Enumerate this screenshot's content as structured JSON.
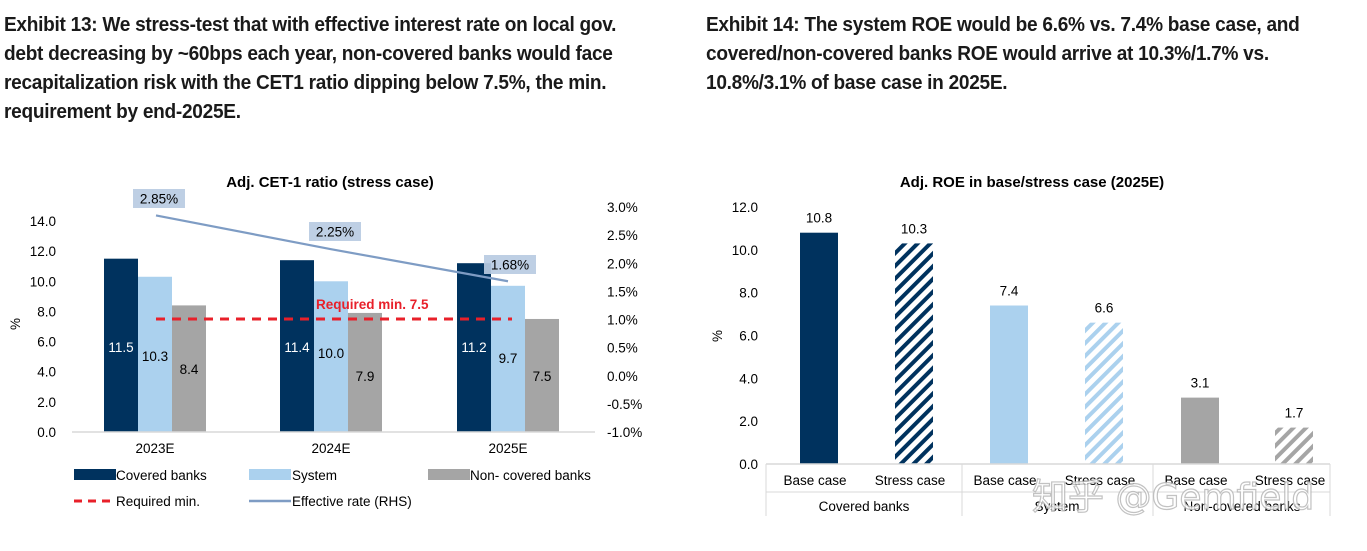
{
  "exhibits": {
    "ex13_title": "Exhibit 13: We stress-test that with effective interest rate on local gov. debt decreasing by ~60bps each year, non-covered banks would face recapitalization risk with the CET1 ratio dipping below 7.5%, the min. requirement by end-2025E.",
    "ex14_title": "Exhibit 14: The system ROE would be 6.6% vs. 7.4% base case, and covered/non-covered banks ROE would arrive at 10.3%/1.7% vs. 10.8%/3.1% of base case in 2025E."
  },
  "colors": {
    "covered": "#00325e",
    "system": "#abd1ee",
    "noncovered": "#a5a5a5",
    "required_min": "#e8202a",
    "effective_rate": "#7e9cc4",
    "rate_label_bg": "#b9cbe2",
    "axis": "#d9d9d9"
  },
  "watermark": "知乎 @Gemfield",
  "chart_data": [
    {
      "id": "cet1",
      "type": "bar",
      "title": "Adj. CET-1 ratio (stress case)",
      "ylabel": "%",
      "ylim": [
        0,
        14
      ],
      "yticks": [
        "0.0",
        "2.0",
        "4.0",
        "6.0",
        "8.0",
        "10.0",
        "12.0",
        "14.0"
      ],
      "y2lim": [
        -1.0,
        3.0
      ],
      "y2ticks": [
        "-1.0%",
        "-0.5%",
        "0.0%",
        "0.5%",
        "1.0%",
        "1.5%",
        "2.0%",
        "2.5%",
        "3.0%"
      ],
      "categories": [
        "2023E",
        "2024E",
        "2025E"
      ],
      "series": [
        {
          "name": "Covered banks",
          "type": "bar",
          "values": [
            11.5,
            11.4,
            11.2
          ],
          "labels": [
            "11.5",
            "11.4",
            "11.2"
          ]
        },
        {
          "name": "System",
          "type": "bar",
          "values": [
            10.3,
            10.0,
            9.7
          ],
          "labels": [
            "10.3",
            "10.0",
            "9.7"
          ]
        },
        {
          "name": "Non- covered banks",
          "type": "bar",
          "values": [
            8.4,
            7.9,
            7.5
          ],
          "labels": [
            "8.4",
            "7.9",
            "7.5"
          ]
        },
        {
          "name": "Required min.",
          "type": "line-dashed",
          "value": 7.5
        },
        {
          "name": "Effective rate (RHS)",
          "type": "line",
          "axis": "right",
          "values": [
            2.85,
            2.25,
            1.68
          ],
          "labels": [
            "2.85%",
            "2.25%",
            "1.68%"
          ]
        }
      ],
      "annotation": "Required min. 7.5",
      "legend": [
        "Covered banks",
        "System",
        "Non- covered banks",
        "Required min.",
        "Effective rate (RHS)"
      ],
      "legend_position": "bottom",
      "grid": false
    },
    {
      "id": "roe",
      "type": "bar",
      "title": "Adj. ROE in base/stress case (2025E)",
      "ylabel": "%",
      "ylim": [
        0,
        12
      ],
      "yticks": [
        "0.0",
        "2.0",
        "4.0",
        "6.0",
        "8.0",
        "10.0",
        "12.0"
      ],
      "groups": [
        "Covered banks",
        "System",
        "Non-covered banks"
      ],
      "categories": [
        "Base case",
        "Stress case",
        "Base case",
        "Stress case",
        "Base case",
        "Stress case"
      ],
      "values": [
        10.8,
        10.3,
        7.4,
        6.6,
        3.1,
        1.7
      ],
      "labels": [
        "10.8",
        "10.3",
        "7.4",
        "6.6",
        "3.1",
        "1.7"
      ],
      "fill": [
        "solid",
        "hatched",
        "solid",
        "hatched",
        "solid",
        "hatched"
      ],
      "group_of_bar": [
        0,
        0,
        1,
        1,
        2,
        2
      ],
      "grid": false
    }
  ]
}
